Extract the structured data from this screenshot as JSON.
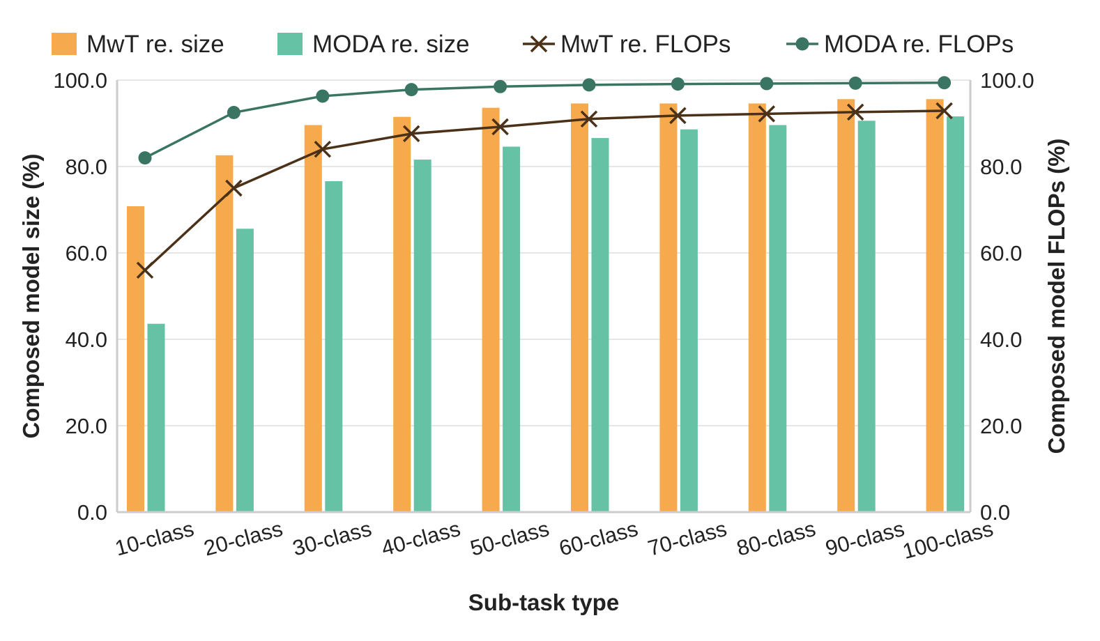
{
  "chart_data": {
    "type": "bar",
    "categories": [
      "10-class",
      "20-class",
      "30-class",
      "40-class",
      "50-class",
      "60-class",
      "70-class",
      "80-class",
      "90-class",
      "100-class"
    ],
    "series": [
      {
        "name": "MwT re. size",
        "kind": "bar",
        "axis": "left",
        "color": "#F7A94D",
        "values": [
          70.8,
          82.6,
          89.6,
          91.5,
          93.6,
          94.6,
          94.6,
          94.6,
          95.6,
          95.6
        ]
      },
      {
        "name": "MODA re. size",
        "kind": "bar",
        "axis": "left",
        "color": "#66C2A5",
        "values": [
          43.6,
          65.6,
          76.6,
          81.6,
          84.6,
          86.6,
          88.6,
          89.6,
          90.6,
          91.6
        ]
      },
      {
        "name": "MwT re. FLOPs",
        "kind": "line",
        "marker": "x",
        "axis": "right",
        "color": "#4A3117",
        "values": [
          56.0,
          75.0,
          84.0,
          87.6,
          89.2,
          91.0,
          91.8,
          92.2,
          92.6,
          92.9
        ]
      },
      {
        "name": "MODA re. FLOPs",
        "kind": "line",
        "marker": "circle",
        "axis": "right",
        "color": "#3A7563",
        "values": [
          82.0,
          92.5,
          96.3,
          97.8,
          98.5,
          98.9,
          99.1,
          99.2,
          99.3,
          99.4
        ]
      }
    ],
    "xlabel": "Sub-task type",
    "ylabel": "Composed model size (%)",
    "ylabel_right": "Composed model FLOPs (%)",
    "ylim": [
      0,
      100
    ],
    "ylim_right": [
      0,
      100
    ],
    "yticks": [
      "0.0",
      "20.0",
      "40.0",
      "60.0",
      "80.0",
      "100.0"
    ],
    "ytick_values": [
      0,
      20,
      40,
      60,
      80,
      100
    ],
    "grid": "horizontal",
    "legend": "top",
    "frame_color": "#CCCCCC",
    "grid_color": "#DDDDDD"
  }
}
